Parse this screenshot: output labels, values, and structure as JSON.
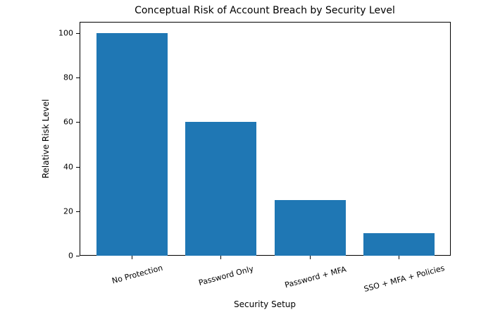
{
  "chart_data": {
    "type": "bar",
    "title": "Conceptual Risk of Account Breach by Security Level",
    "xlabel": "Security Setup",
    "ylabel": "Relative Risk Level",
    "categories": [
      "No Protection",
      "Password Only",
      "Password + MFA",
      "SSO + MFA + Policies"
    ],
    "values": [
      100,
      60,
      25,
      10
    ],
    "ylim": [
      0,
      105
    ],
    "yticks": [
      0,
      20,
      40,
      60,
      80,
      100
    ],
    "grid": false,
    "legend": null,
    "bar_color": "#1f77b4"
  }
}
